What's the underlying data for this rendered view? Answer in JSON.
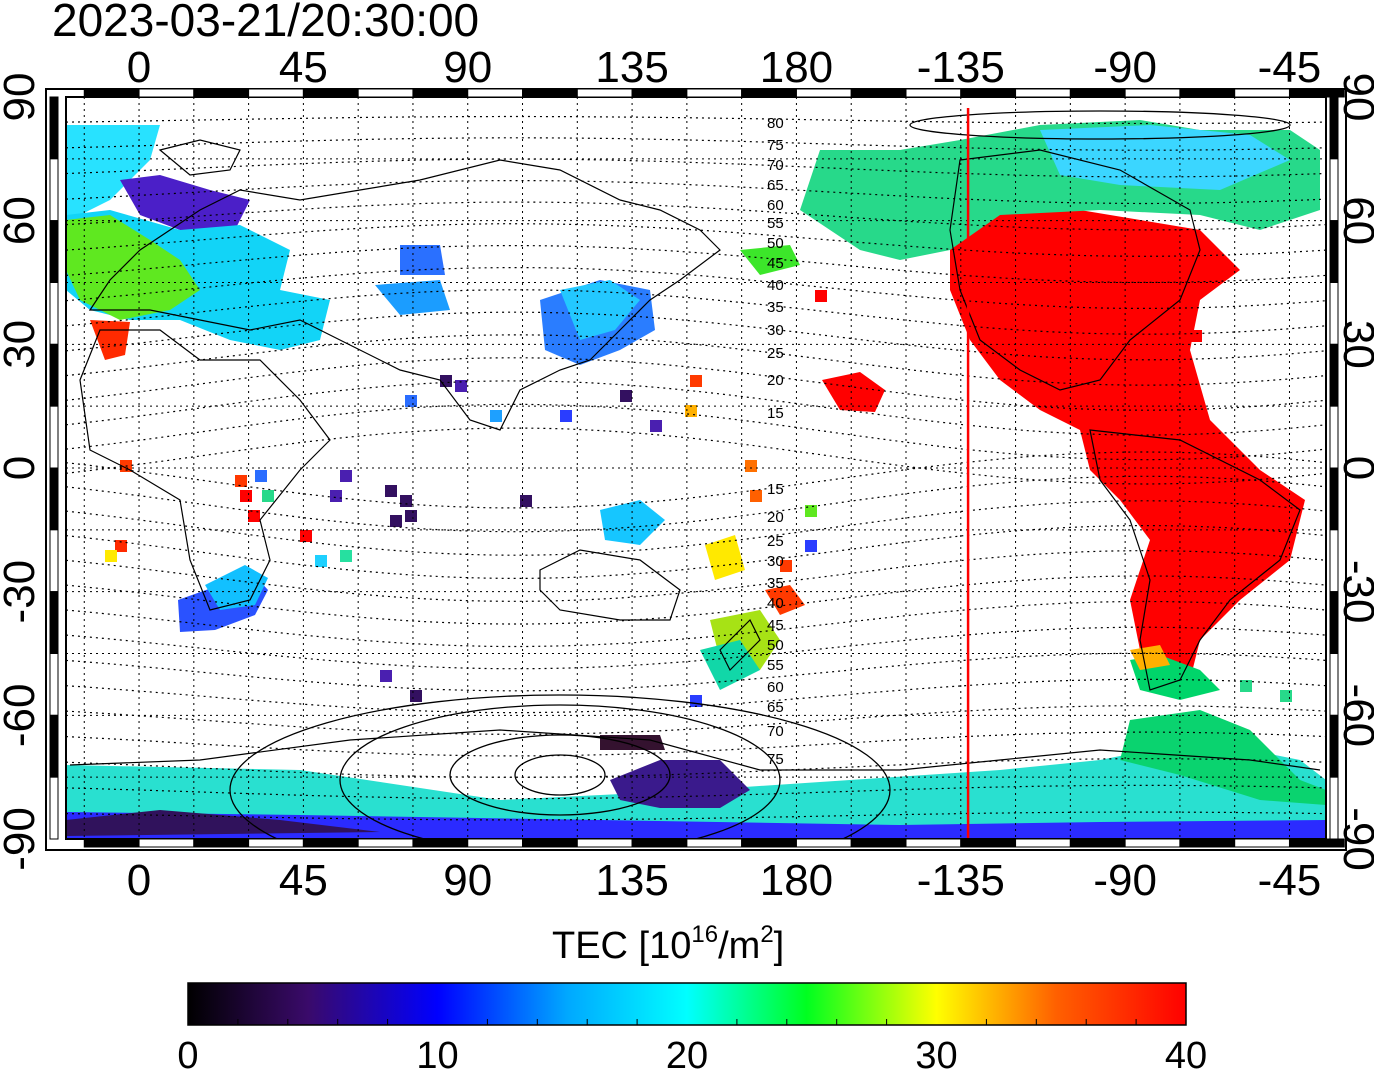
{
  "title": "2023-03-21/20:30:00",
  "colorbar_label_main": "TEC  [10",
  "colorbar_label_sup": "16",
  "colorbar_label_unit": "/m",
  "colorbar_label_sup2": "2",
  "colorbar_label_end": "]",
  "lon_ticks": [
    {
      "label": "0",
      "lon": 0
    },
    {
      "label": "45",
      "lon": 45
    },
    {
      "label": "90",
      "lon": 90
    },
    {
      "label": "135",
      "lon": 135
    },
    {
      "label": "180",
      "lon": 180
    },
    {
      "label": "-135",
      "lon": 225
    },
    {
      "label": "-90",
      "lon": 270
    },
    {
      "label": "-45",
      "lon": 315
    }
  ],
  "lat_ticks": [
    {
      "label": "90",
      "lat": 90
    },
    {
      "label": "60",
      "lat": 60
    },
    {
      "label": "30",
      "lat": 30
    },
    {
      "label": "0",
      "lat": 0
    },
    {
      "label": "-30",
      "lat": -30
    },
    {
      "label": "-60",
      "lat": -60
    },
    {
      "label": "-90",
      "lat": -90
    }
  ],
  "contour_labels_north": [
    "80",
    "75",
    "70",
    "65",
    "60",
    "55",
    "50",
    "45",
    "40",
    "35",
    "30",
    "25",
    "20",
    "15"
  ],
  "contour_labels_south": [
    "15",
    "20",
    "25",
    "30",
    "35",
    "40",
    "45",
    "50",
    "55",
    "60",
    "65",
    "70",
    "75"
  ],
  "colorbar": {
    "min": 0,
    "max": 40,
    "ticks": [
      "0",
      "10",
      "20",
      "30",
      "40"
    ]
  },
  "map_extent": {
    "lon_min": -20,
    "lon_max": 325,
    "lat_min": -90,
    "lat_max": 90
  },
  "terminator_lon": 227,
  "colors": {
    "terminator": "#ff0000",
    "grid": "#000000"
  }
}
